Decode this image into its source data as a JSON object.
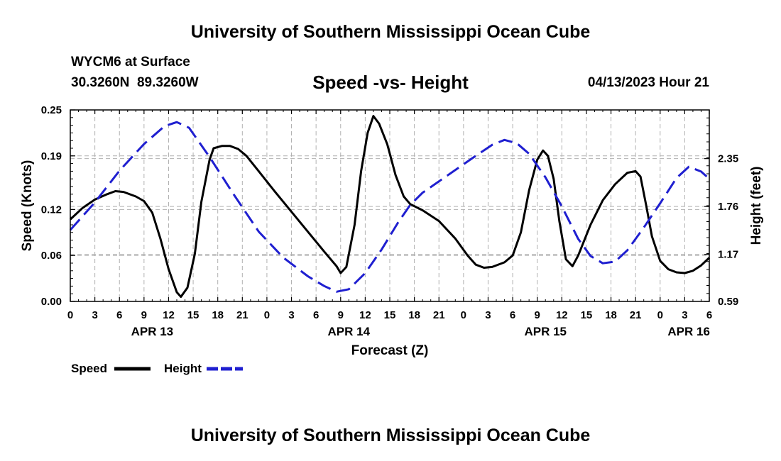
{
  "header": {
    "title": "University of Southern Mississippi Ocean Cube",
    "station": "WYCM6 at Surface",
    "lat": "30.3260N",
    "lon": "89.3260W",
    "subtitle": "Speed -vs- Height",
    "date": "04/13/2023 Hour 21"
  },
  "footer": {
    "title": "University of Southern Mississippi Ocean Cube"
  },
  "colors": {
    "speed": "#000000",
    "height": "#1f1fd0",
    "grid": "#b0b0b0"
  },
  "chart_data": {
    "type": "line",
    "title": "Speed -vs- Height",
    "xlabel": "Forecast (Z)",
    "ylabel": "Speed (Knots)",
    "y2label": "Height (feet)",
    "x_unit": "hours since 2023-04-13 00Z",
    "xlim": [
      0,
      78
    ],
    "ylim": [
      0.0,
      0.25
    ],
    "y2lim": [
      0.59,
      2.95
    ],
    "xticks": [
      0,
      3,
      6,
      9,
      12,
      15,
      18,
      21,
      24,
      27,
      30,
      33,
      36,
      39,
      42,
      45,
      48,
      51,
      54,
      57,
      60,
      63,
      66,
      69,
      72,
      75,
      78
    ],
    "xtick_labels": [
      "0",
      "3",
      "6",
      "9",
      "12",
      "15",
      "18",
      "21",
      "0",
      "3",
      "6",
      "9",
      "12",
      "15",
      "18",
      "21",
      "0",
      "3",
      "6",
      "9",
      "12",
      "15",
      "18",
      "21",
      "0",
      "3",
      "6"
    ],
    "yticks": [
      0.0,
      0.06,
      0.12,
      0.19,
      0.25
    ],
    "ytick_labels": [
      "0.00",
      "0.06",
      "0.12",
      "0.19",
      "0.25"
    ],
    "y2ticks": [
      0.59,
      1.17,
      1.76,
      2.35
    ],
    "y2tick_labels": [
      "0.59",
      "1.17",
      "1.76",
      "2.35"
    ],
    "day_labels": [
      {
        "x": 10,
        "label": "APR 13"
      },
      {
        "x": 34,
        "label": "APR 14"
      },
      {
        "x": 58,
        "label": "APR 15"
      },
      {
        "x": 75.5,
        "label": "APR 16"
      }
    ],
    "legend": {
      "position": "bottom-left"
    },
    "series": [
      {
        "name": "Speed",
        "axis": "left",
        "style": "solid",
        "points": [
          [
            0,
            0.107
          ],
          [
            1.5,
            0.122
          ],
          [
            3,
            0.133
          ],
          [
            4.5,
            0.14
          ],
          [
            5.5,
            0.144
          ],
          [
            6.5,
            0.143
          ],
          [
            8,
            0.137
          ],
          [
            9,
            0.131
          ],
          [
            10,
            0.116
          ],
          [
            11,
            0.082
          ],
          [
            12,
            0.042
          ],
          [
            13,
            0.012
          ],
          [
            13.5,
            0.006
          ],
          [
            14.3,
            0.018
          ],
          [
            15.2,
            0.062
          ],
          [
            16,
            0.13
          ],
          [
            17,
            0.185
          ],
          [
            17.5,
            0.2
          ],
          [
            18.5,
            0.203
          ],
          [
            19.5,
            0.203
          ],
          [
            20.5,
            0.199
          ],
          [
            21.5,
            0.19
          ],
          [
            23,
            0.17
          ],
          [
            25,
            0.143
          ],
          [
            27,
            0.117
          ],
          [
            29,
            0.091
          ],
          [
            31,
            0.065
          ],
          [
            32.5,
            0.046
          ],
          [
            33,
            0.037
          ],
          [
            33.7,
            0.045
          ],
          [
            34.7,
            0.1
          ],
          [
            35.5,
            0.17
          ],
          [
            36.3,
            0.22
          ],
          [
            37,
            0.242
          ],
          [
            37.7,
            0.232
          ],
          [
            38.7,
            0.205
          ],
          [
            39.7,
            0.165
          ],
          [
            40.7,
            0.137
          ],
          [
            41.5,
            0.127
          ],
          [
            43,
            0.119
          ],
          [
            45,
            0.105
          ],
          [
            47,
            0.082
          ],
          [
            48.5,
            0.06
          ],
          [
            49.5,
            0.048
          ],
          [
            50.5,
            0.044
          ],
          [
            51.5,
            0.045
          ],
          [
            53,
            0.051
          ],
          [
            54,
            0.06
          ],
          [
            55,
            0.09
          ],
          [
            56,
            0.145
          ],
          [
            57,
            0.185
          ],
          [
            57.7,
            0.197
          ],
          [
            58.3,
            0.19
          ],
          [
            59,
            0.16
          ],
          [
            59.7,
            0.105
          ],
          [
            60.5,
            0.055
          ],
          [
            61.3,
            0.046
          ],
          [
            62,
            0.06
          ],
          [
            63.5,
            0.1
          ],
          [
            65,
            0.132
          ],
          [
            66.5,
            0.153
          ],
          [
            68,
            0.168
          ],
          [
            69,
            0.17
          ],
          [
            69.6,
            0.163
          ],
          [
            70.3,
            0.125
          ],
          [
            71,
            0.085
          ],
          [
            72,
            0.053
          ],
          [
            73,
            0.042
          ],
          [
            74,
            0.038
          ],
          [
            75,
            0.037
          ],
          [
            76,
            0.04
          ],
          [
            77,
            0.047
          ],
          [
            78,
            0.057
          ]
        ]
      },
      {
        "name": "Height",
        "axis": "right",
        "style": "dashed",
        "points": [
          [
            0,
            1.47
          ],
          [
            3,
            1.81
          ],
          [
            6,
            2.2
          ],
          [
            9,
            2.53
          ],
          [
            11.5,
            2.75
          ],
          [
            13,
            2.8
          ],
          [
            14.5,
            2.73
          ],
          [
            17,
            2.37
          ],
          [
            20,
            1.9
          ],
          [
            23,
            1.45
          ],
          [
            26,
            1.13
          ],
          [
            29,
            0.9
          ],
          [
            31,
            0.78
          ],
          [
            32.5,
            0.71
          ],
          [
            34,
            0.74
          ],
          [
            36,
            0.94
          ],
          [
            38,
            1.23
          ],
          [
            40,
            1.56
          ],
          [
            41.5,
            1.78
          ],
          [
            43,
            1.93
          ],
          [
            46,
            2.14
          ],
          [
            49,
            2.35
          ],
          [
            51.5,
            2.52
          ],
          [
            53,
            2.58
          ],
          [
            54.5,
            2.54
          ],
          [
            56,
            2.41
          ],
          [
            58,
            2.12
          ],
          [
            60,
            1.76
          ],
          [
            62,
            1.36
          ],
          [
            63.5,
            1.15
          ],
          [
            65,
            1.06
          ],
          [
            66.5,
            1.08
          ],
          [
            68,
            1.22
          ],
          [
            70,
            1.5
          ],
          [
            72,
            1.8
          ],
          [
            74,
            2.11
          ],
          [
            75.5,
            2.25
          ],
          [
            77,
            2.19
          ],
          [
            78,
            2.1
          ]
        ]
      }
    ]
  }
}
